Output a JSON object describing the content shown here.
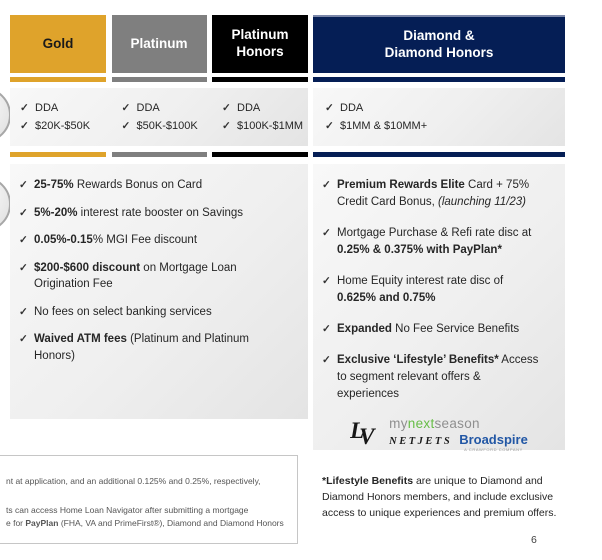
{
  "icons": {
    "check": "✓"
  },
  "colors": {
    "gold": "#DFA32B",
    "platinum_gray": "#7F7F7F",
    "platinum_honors_black": "#000000",
    "diamond_navy": "#051E55",
    "mynextseason_green": "#67BD47",
    "broadspire_blue": "#2257A5"
  },
  "tiers": [
    {
      "label": "Gold",
      "color": "#DFA32B",
      "text_color": "#1A1A1A",
      "dda": [
        "DDA",
        "$20K-$50K"
      ]
    },
    {
      "label": "Platinum",
      "color": "#7F7F7F",
      "text_color": "#FFFFFF",
      "dda": [
        "DDA",
        "$50K-$100K"
      ]
    },
    {
      "label": "Platinum\nHonors",
      "color": "#000000",
      "text_color": "#FFFFFF",
      "dda": [
        "DDA",
        "$100K-$1MM"
      ]
    },
    {
      "label": "Diamond &\nDiamond Honors",
      "color": "#051E55",
      "text_color": "#FFFFFF",
      "dda": [
        "DDA",
        "$1MM & $10MM+"
      ]
    }
  ],
  "left_benefits": [
    [
      {
        "t": "25-75%",
        "b": 1
      },
      {
        "t": " Rewards Bonus on Card"
      }
    ],
    [
      {
        "t": "5%-20%",
        "b": 1
      },
      {
        "t": " interest rate booster on Savings"
      }
    ],
    [
      {
        "t": "0.05%-0.15",
        "b": 1
      },
      {
        "t": "% MGI Fee discount"
      }
    ],
    [
      {
        "t": "$200-$600 discount",
        "b": 1
      },
      {
        "t": " on Mortgage Loan Origination Fee"
      }
    ],
    [
      {
        "t": "No fees on select banking services"
      }
    ],
    [
      {
        "t": "Waived ATM fees",
        "b": 1
      },
      {
        "t": " (Platinum and Platinum Honors)"
      }
    ]
  ],
  "right_benefits": [
    [
      {
        "t": "Premium Rewards Elite",
        "b": 1
      },
      {
        "t": " Card + 75% Credit Card Bonus, "
      },
      {
        "t": "(launching 11/23)",
        "i": 1
      }
    ],
    [
      {
        "t": "Mortgage Purchase & Refi rate disc at "
      },
      {
        "t": "0.25% & 0.375% with PayPlan*",
        "b": 1
      }
    ],
    [
      {
        "t": "Home Equity interest rate disc of "
      },
      {
        "t": "0.625% and 0.75%",
        "b": 1
      }
    ],
    [
      {
        "t": "Expanded",
        "b": 1
      },
      {
        "t": " No Fee Service Benefits"
      }
    ],
    [
      {
        "t": "Exclusive ‘Lifestyle’ Benefits*",
        "b": 1
      },
      {
        "t": " Access to segment relevant offers & experiences"
      }
    ]
  ],
  "logos": {
    "lv": {
      "l": "L",
      "v": "V"
    },
    "mynextseason": {
      "part1": "my",
      "part2": "next",
      "part3": "season"
    },
    "netjets": "NETJETS",
    "broadspire": {
      "name": "Broadspire",
      "tagline": "A CRAWFORD COMPANY"
    }
  },
  "footnotes": {
    "left_lines": [
      [
        {
          "t": "nt at application, and an additional 0.125% and 0.25%, respectively,"
        }
      ],
      [
        {
          "t": "ts can access Home Loan Navigator after submitting a mortgage"
        }
      ],
      [
        {
          "t": "e for "
        },
        {
          "t": "PayPlan",
          "b": 1
        },
        {
          "t": " (FHA, VA and PrimeFirst®), Diamond and Diamond Honors"
        }
      ]
    ],
    "right": [
      {
        "t": "*Lifestyle Benefits",
        "b": 1
      },
      {
        "t": " are unique to Diamond and Diamond Honors members, and include exclusive access to unique experiences and premium offers."
      }
    ]
  },
  "page_number": "6"
}
